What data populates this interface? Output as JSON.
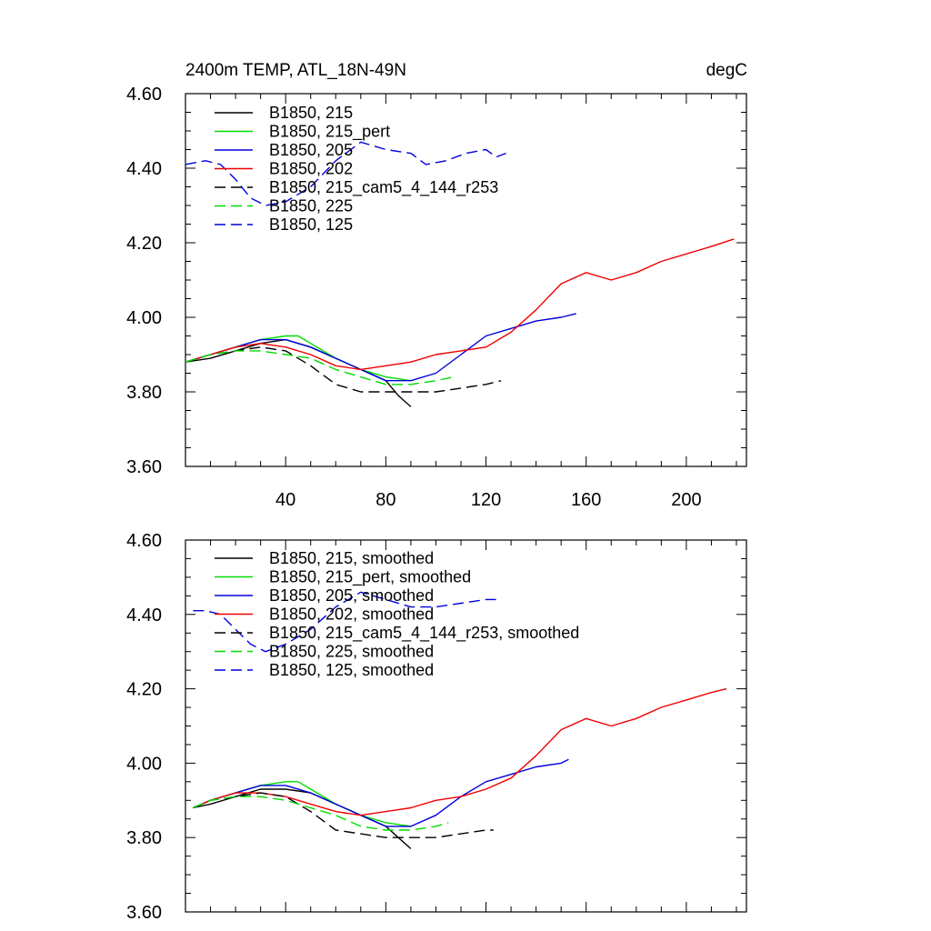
{
  "chart_data": [
    {
      "type": "line",
      "title": "2400m TEMP, ATL_18N-49N",
      "units": "degC",
      "xlim": [
        0,
        224
      ],
      "ylim": [
        3.6,
        4.6
      ],
      "x_ticks": [
        40,
        80,
        120,
        160,
        200
      ],
      "x_tick_labels": [
        "40",
        "80",
        "120",
        "160",
        "200"
      ],
      "y_ticks": [
        3.6,
        3.8,
        4.0,
        4.2,
        4.4,
        4.6
      ],
      "y_tick_labels": [
        "3.60",
        "3.80",
        "4.00",
        "4.20",
        "4.40",
        "4.60"
      ],
      "legend_position": "top-left",
      "series": [
        {
          "name": "B1850, 215",
          "color": "#000000",
          "dash": false,
          "x": [
            0,
            10,
            20,
            30,
            40,
            50,
            60,
            70,
            80,
            85,
            90
          ],
          "y": [
            3.88,
            3.89,
            3.91,
            3.93,
            3.94,
            3.92,
            3.89,
            3.86,
            3.83,
            3.79,
            3.76
          ]
        },
        {
          "name": "B1850, 215_pert",
          "color": "#00dd00",
          "dash": false,
          "x": [
            0,
            10,
            20,
            30,
            40,
            45,
            50,
            60,
            70,
            80,
            90
          ],
          "y": [
            3.88,
            3.9,
            3.92,
            3.94,
            3.95,
            3.95,
            3.93,
            3.89,
            3.86,
            3.84,
            3.83
          ]
        },
        {
          "name": "B1850, 205",
          "color": "#0000dd",
          "dash": false,
          "x": [
            0,
            10,
            20,
            30,
            40,
            50,
            60,
            70,
            80,
            90,
            100,
            110,
            120,
            130,
            140,
            150,
            156
          ],
          "y": [
            3.88,
            3.9,
            3.92,
            3.94,
            3.94,
            3.92,
            3.89,
            3.86,
            3.83,
            3.83,
            3.85,
            3.9,
            3.95,
            3.97,
            3.99,
            4.0,
            4.01
          ]
        },
        {
          "name": "B1850, 202",
          "color": "#ee0000",
          "dash": false,
          "x": [
            0,
            10,
            20,
            30,
            40,
            50,
            60,
            70,
            80,
            90,
            100,
            110,
            120,
            130,
            140,
            150,
            160,
            170,
            180,
            190,
            200,
            210,
            219
          ],
          "y": [
            3.88,
            3.9,
            3.92,
            3.93,
            3.92,
            3.9,
            3.87,
            3.86,
            3.87,
            3.88,
            3.9,
            3.91,
            3.92,
            3.96,
            4.02,
            4.09,
            4.12,
            4.1,
            4.12,
            4.15,
            4.17,
            4.19,
            4.21
          ]
        },
        {
          "name": "B1850, 215_cam5_4_144_r253",
          "color": "#000000",
          "dash": true,
          "x": [
            0,
            10,
            20,
            30,
            40,
            50,
            60,
            70,
            80,
            90,
            100,
            110,
            120,
            126
          ],
          "y": [
            3.88,
            3.9,
            3.91,
            3.92,
            3.91,
            3.87,
            3.82,
            3.8,
            3.8,
            3.8,
            3.8,
            3.81,
            3.82,
            3.83
          ]
        },
        {
          "name": "B1850, 225",
          "color": "#00dd00",
          "dash": true,
          "x": [
            0,
            10,
            20,
            30,
            40,
            50,
            60,
            70,
            80,
            90,
            100,
            107
          ],
          "y": [
            3.88,
            3.9,
            3.91,
            3.91,
            3.9,
            3.89,
            3.86,
            3.84,
            3.82,
            3.82,
            3.83,
            3.84
          ]
        },
        {
          "name": "B1850, 125",
          "color": "#0000dd",
          "dash": true,
          "x": [
            0,
            8,
            14,
            20,
            26,
            32,
            40,
            50,
            60,
            70,
            80,
            90,
            96,
            104,
            112,
            120,
            124,
            128
          ],
          "y": [
            4.41,
            4.42,
            4.41,
            4.37,
            4.32,
            4.3,
            4.31,
            4.35,
            4.42,
            4.47,
            4.45,
            4.44,
            4.41,
            4.42,
            4.44,
            4.45,
            4.43,
            4.44
          ]
        }
      ]
    },
    {
      "type": "line",
      "title": "",
      "xlim": [
        0,
        224
      ],
      "ylim": [
        3.6,
        4.6
      ],
      "x_ticks": [
        40,
        80,
        120,
        160,
        200
      ],
      "x_tick_labels": [],
      "y_ticks": [
        3.6,
        3.8,
        4.0,
        4.2,
        4.4,
        4.6
      ],
      "y_tick_labels": [
        "3.60",
        "3.80",
        "4.00",
        "4.20",
        "4.40",
        "4.60"
      ],
      "legend_position": "top-left",
      "series": [
        {
          "name": "B1850, 215, smoothed",
          "color": "#000000",
          "dash": false,
          "x": [
            3,
            10,
            20,
            30,
            40,
            50,
            60,
            70,
            80,
            85,
            90
          ],
          "y": [
            3.88,
            3.89,
            3.91,
            3.93,
            3.93,
            3.92,
            3.89,
            3.86,
            3.83,
            3.8,
            3.77
          ]
        },
        {
          "name": "B1850, 215_pert, smoothed",
          "color": "#00dd00",
          "dash": false,
          "x": [
            3,
            10,
            20,
            30,
            40,
            45,
            50,
            60,
            70,
            80,
            90
          ],
          "y": [
            3.88,
            3.9,
            3.92,
            3.94,
            3.95,
            3.95,
            3.93,
            3.89,
            3.86,
            3.84,
            3.83
          ]
        },
        {
          "name": "B1850, 205, smoothed",
          "color": "#0000dd",
          "dash": false,
          "x": [
            3,
            10,
            20,
            30,
            40,
            50,
            60,
            70,
            80,
            90,
            100,
            110,
            120,
            130,
            140,
            150,
            153
          ],
          "y": [
            3.88,
            3.9,
            3.92,
            3.94,
            3.94,
            3.92,
            3.89,
            3.86,
            3.83,
            3.83,
            3.86,
            3.91,
            3.95,
            3.97,
            3.99,
            4.0,
            4.01
          ]
        },
        {
          "name": "B1850, 202, smoothed",
          "color": "#ee0000",
          "dash": false,
          "x": [
            3,
            10,
            20,
            30,
            40,
            50,
            60,
            70,
            80,
            90,
            100,
            110,
            120,
            130,
            140,
            150,
            160,
            170,
            180,
            190,
            200,
            210,
            216
          ],
          "y": [
            3.88,
            3.9,
            3.92,
            3.92,
            3.91,
            3.89,
            3.87,
            3.86,
            3.87,
            3.88,
            3.9,
            3.91,
            3.93,
            3.96,
            4.02,
            4.09,
            4.12,
            4.1,
            4.12,
            4.15,
            4.17,
            4.19,
            4.2
          ]
        },
        {
          "name": "B1850, 215_cam5_4_144_r253, smoothed",
          "color": "#000000",
          "dash": true,
          "x": [
            3,
            10,
            20,
            30,
            40,
            50,
            60,
            70,
            80,
            90,
            100,
            110,
            120,
            123
          ],
          "y": [
            3.88,
            3.9,
            3.91,
            3.92,
            3.91,
            3.87,
            3.82,
            3.81,
            3.8,
            3.8,
            3.8,
            3.81,
            3.82,
            3.82
          ]
        },
        {
          "name": "B1850, 225, smoothed",
          "color": "#00dd00",
          "dash": true,
          "x": [
            3,
            10,
            20,
            30,
            40,
            50,
            60,
            70,
            80,
            90,
            100,
            105
          ],
          "y": [
            3.88,
            3.9,
            3.91,
            3.91,
            3.9,
            3.88,
            3.86,
            3.83,
            3.82,
            3.82,
            3.83,
            3.84
          ]
        },
        {
          "name": "B1850, 125, smoothed",
          "color": "#0000dd",
          "dash": true,
          "x": [
            3,
            8,
            14,
            20,
            26,
            32,
            40,
            50,
            60,
            70,
            80,
            90,
            100,
            110,
            120,
            124
          ],
          "y": [
            4.41,
            4.41,
            4.4,
            4.36,
            4.32,
            4.3,
            4.32,
            4.36,
            4.42,
            4.46,
            4.44,
            4.42,
            4.42,
            4.43,
            4.44,
            4.44
          ]
        }
      ]
    }
  ]
}
